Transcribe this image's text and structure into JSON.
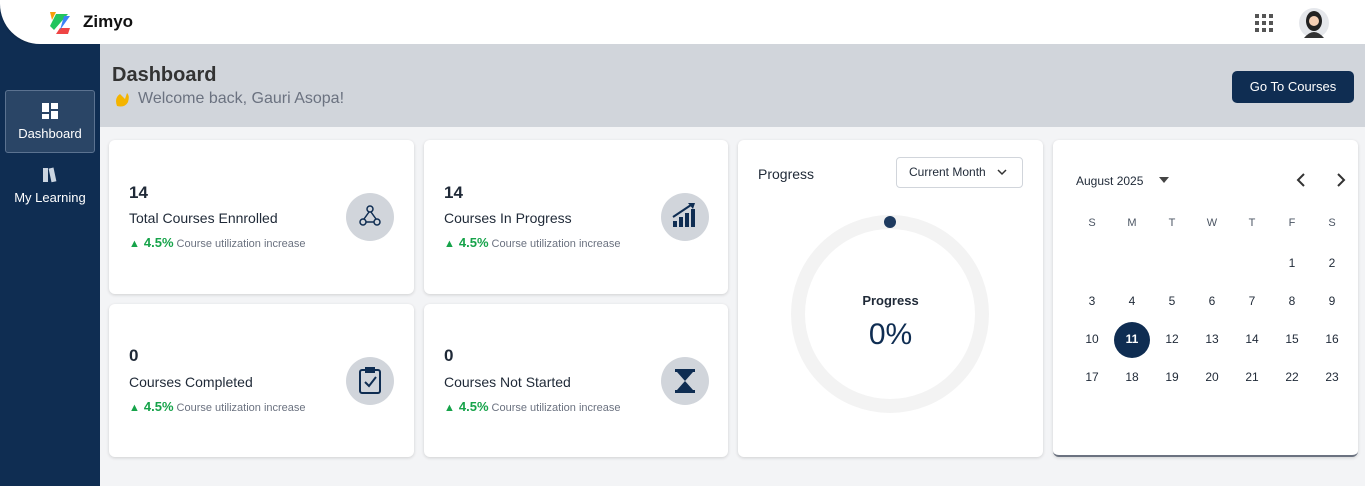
{
  "header": {
    "brand": "Zimyo"
  },
  "sidebar": {
    "items": [
      "Dashboard",
      "My Learning"
    ]
  },
  "banner": {
    "title": "Dashboard",
    "greeting": "Welcome back, Gauri Asopa!",
    "button": "Go To Courses"
  },
  "stats": [
    {
      "value": 14,
      "label": "Total Courses Ennrolled",
      "change": "4.5%",
      "note": "Course utilization increase"
    },
    {
      "value": 14,
      "label": "Courses In Progress",
      "change": "4.5%",
      "note": "Course utilization increase"
    },
    {
      "value": 0,
      "label": "Courses Completed",
      "change": "4.5%",
      "note": "Course utilization increase"
    },
    {
      "value": 0,
      "label": "Courses Not Started",
      "change": "4.5%",
      "note": "Course utilization increase"
    }
  ],
  "progress": {
    "title": "Progress",
    "filter": "Current Month",
    "center_label": "Progress",
    "center_value": "0%"
  },
  "calendar": {
    "month": "August 2025",
    "weekdays": [
      "S",
      "M",
      "T",
      "W",
      "T",
      "F",
      "S"
    ],
    "weeks": [
      [
        null,
        null,
        null,
        null,
        null,
        1,
        2
      ],
      [
        3,
        4,
        5,
        6,
        7,
        8,
        9
      ],
      [
        10,
        11,
        12,
        13,
        14,
        15,
        16
      ],
      [
        17,
        18,
        19,
        20,
        21,
        22,
        23
      ]
    ],
    "selected": 11
  }
}
